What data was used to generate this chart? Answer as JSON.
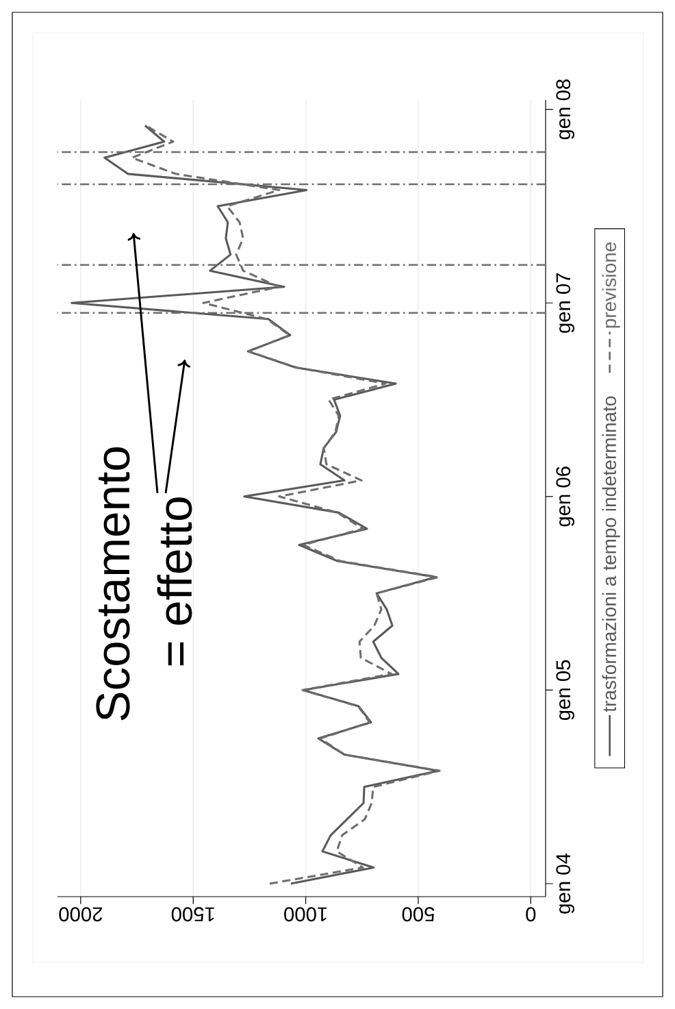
{
  "chart_data": {
    "type": "line",
    "orientation": "horizontal",
    "x": [
      "2004-01",
      "2004-02",
      "2004-03",
      "2004-04",
      "2004-05",
      "2004-06",
      "2004-07",
      "2004-08",
      "2004-09",
      "2004-10",
      "2004-11",
      "2004-12",
      "2005-01",
      "2005-02",
      "2005-03",
      "2005-04",
      "2005-05",
      "2005-06",
      "2005-07",
      "2005-08",
      "2005-09",
      "2005-10",
      "2005-11",
      "2005-12",
      "2006-01",
      "2006-02",
      "2006-03",
      "2006-04",
      "2006-05",
      "2006-06",
      "2006-07",
      "2006-08",
      "2006-09",
      "2006-10",
      "2006-11",
      "2006-12",
      "2007-01",
      "2007-02",
      "2007-03",
      "2007-04",
      "2007-05",
      "2007-06",
      "2007-07",
      "2007-08",
      "2007-09",
      "2007-10",
      "2007-11",
      "2007-12"
    ],
    "series": [
      {
        "name": "trasformazioni a tempo indeterminato",
        "color": "#5a5a5a",
        "line_style": "solid",
        "values": [
          1066,
          698,
          926,
          889,
          816,
          743,
          740,
          412,
          828,
          944,
          710,
          765,
          1011,
          588,
          664,
          700,
          615,
          640,
          685,
          421,
          859,
          1029,
          728,
          853,
          1273,
          828,
          935,
          920,
          865,
          847,
          874,
          600,
          1045,
          1257,
          1069,
          1166,
          2040,
          1096,
          1425,
          1334,
          1355,
          1346,
          1391,
          996,
          1790,
          1894,
          1629,
          1714
        ]
      },
      {
        "name": "previsione",
        "color": "#6e6e6e",
        "line_style": "dashed",
        "values": [
          1160,
          746,
          862,
          838,
          737,
          707,
          700,
          405,
          828,
          935,
          716,
          767,
          1014,
          619,
          755,
          761,
          695,
          664,
          685,
          412,
          847,
          1011,
          746,
          859,
          1118,
          752,
          908,
          920,
          868,
          853,
          898,
          646,
          1042,
          1254,
          1072,
          1172,
          1455,
          1120,
          1278,
          1309,
          1278,
          1294,
          1349,
          1118,
          1577,
          1772,
          1589,
          1711
        ]
      }
    ],
    "ylim": [
      "2003-12-07",
      "2008-01-19"
    ],
    "yticks": [
      {
        "value": "2004-01",
        "label": "gen 04"
      },
      {
        "value": "2005-01",
        "label": "gen 05"
      },
      {
        "value": "2006-01",
        "label": "gen 06"
      },
      {
        "value": "2007-01",
        "label": "gen 07"
      },
      {
        "value": "2008-01",
        "label": "gen 08"
      }
    ],
    "xlim": [
      2103,
      -66
    ],
    "xticks": [
      0,
      500,
      1000,
      1500,
      2000
    ],
    "grid": "x",
    "legend": "right",
    "ref_lines": [
      {
        "axis": "y",
        "value": "2006-12-13",
        "color": "#6e6e6e",
        "line_style": "dashdot"
      },
      {
        "axis": "y",
        "value": "2007-03-12",
        "color": "#6e6e6e",
        "line_style": "dashdot"
      },
      {
        "axis": "y",
        "value": "2007-08-12",
        "color": "#6e6e6e",
        "line_style": "dashdot"
      },
      {
        "axis": "y",
        "value": "2007-10-12",
        "color": "#6e6e6e",
        "line_style": "dashdot"
      }
    ],
    "annotations": [
      "Scostamento",
      "= effetto"
    ]
  }
}
